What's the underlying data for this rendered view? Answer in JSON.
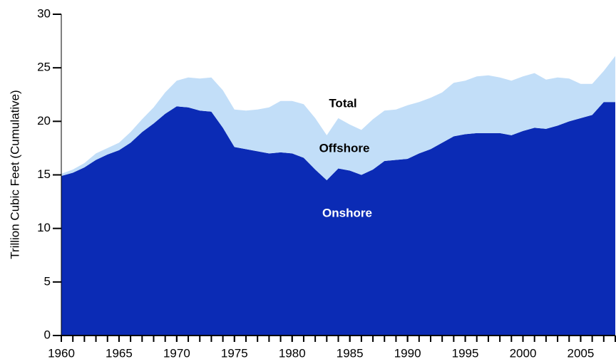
{
  "chart_data": {
    "type": "area",
    "ylabel": "Trillion Cubic Feet (Cumulative)",
    "annotations": [
      "Total"
    ],
    "x": [
      1960,
      1961,
      1962,
      1963,
      1964,
      1965,
      1966,
      1967,
      1968,
      1969,
      1970,
      1971,
      1972,
      1973,
      1974,
      1975,
      1976,
      1977,
      1978,
      1979,
      1980,
      1981,
      1982,
      1983,
      1984,
      1985,
      1986,
      1987,
      1988,
      1989,
      1990,
      1991,
      1992,
      1993,
      1994,
      1995,
      1996,
      1997,
      1998,
      1999,
      2000,
      2001,
      2002,
      2003,
      2004,
      2005,
      2006,
      2007,
      2008
    ],
    "series": [
      {
        "name": "Onshore",
        "color": "#0b2bb5",
        "values": [
          14.9,
          15.2,
          15.7,
          16.4,
          16.9,
          17.3,
          18.0,
          19.0,
          19.8,
          20.7,
          21.4,
          21.3,
          21.0,
          20.9,
          19.4,
          17.6,
          17.4,
          17.2,
          17.0,
          17.1,
          17.0,
          16.6,
          15.5,
          14.5,
          15.6,
          15.4,
          15.0,
          15.5,
          16.3,
          16.4,
          16.5,
          17.0,
          17.4,
          18.0,
          18.6,
          18.8,
          18.9,
          18.9,
          18.9,
          18.7,
          19.1,
          19.4,
          19.3,
          19.6,
          20.0,
          20.3,
          20.6,
          21.8,
          21.8
        ]
      },
      {
        "name": "Offshore",
        "color": "#c2def8",
        "values": [
          0.2,
          0.3,
          0.4,
          0.6,
          0.6,
          0.7,
          1.0,
          1.2,
          1.5,
          2.0,
          2.4,
          2.8,
          3.0,
          3.2,
          3.5,
          3.5,
          3.6,
          3.9,
          4.3,
          4.8,
          4.9,
          5.0,
          4.8,
          4.2,
          4.7,
          4.3,
          4.2,
          4.7,
          4.7,
          4.7,
          5.0,
          4.8,
          4.8,
          4.7,
          5.0,
          5.0,
          5.3,
          5.4,
          5.2,
          5.1,
          5.1,
          5.1,
          4.6,
          4.5,
          4.0,
          3.2,
          2.9,
          2.9,
          4.3
        ]
      }
    ],
    "stacked": true,
    "xlim": [
      1960,
      2008
    ],
    "xticks": [
      1960,
      1965,
      1970,
      1975,
      1980,
      1985,
      1990,
      1995,
      2000,
      2005
    ],
    "ylim": [
      0,
      30
    ],
    "yticks": [
      0,
      5,
      10,
      15,
      20,
      25,
      30
    ]
  }
}
